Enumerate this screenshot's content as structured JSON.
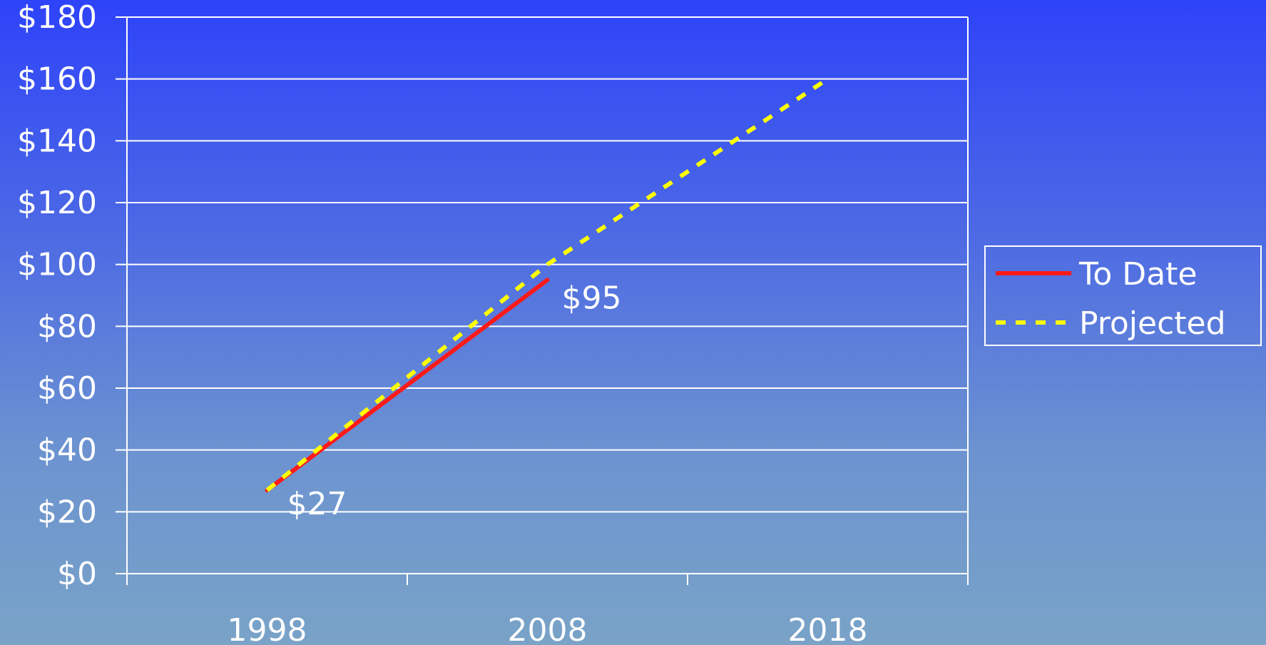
{
  "chart_data": {
    "type": "line",
    "x": [
      1998,
      2008,
      2018
    ],
    "x_tick_labels": [
      "1998",
      "2008",
      "2018"
    ],
    "ylim": [
      0,
      180
    ],
    "y_ticks": [
      0,
      20,
      40,
      60,
      80,
      100,
      120,
      140,
      160,
      180
    ],
    "y_tick_labels": [
      "$0",
      "$20",
      "$40",
      "$60",
      "$80",
      "$100",
      "$120",
      "$140",
      "$160",
      "$180"
    ],
    "grid": true,
    "legend_position": "right",
    "series": [
      {
        "name": "To Date",
        "color": "#ff1a1a",
        "style": "solid",
        "points": [
          [
            1998,
            27
          ],
          [
            2008,
            95
          ]
        ]
      },
      {
        "name": "Projected",
        "color": "#ffff00",
        "style": "dashed",
        "points": [
          [
            1998,
            27
          ],
          [
            2008,
            100
          ],
          [
            2018,
            160
          ]
        ]
      }
    ],
    "data_labels": [
      {
        "x": 1998,
        "y": 27,
        "text": "$27"
      },
      {
        "x": 2008,
        "y": 95,
        "text": "$95"
      }
    ]
  }
}
